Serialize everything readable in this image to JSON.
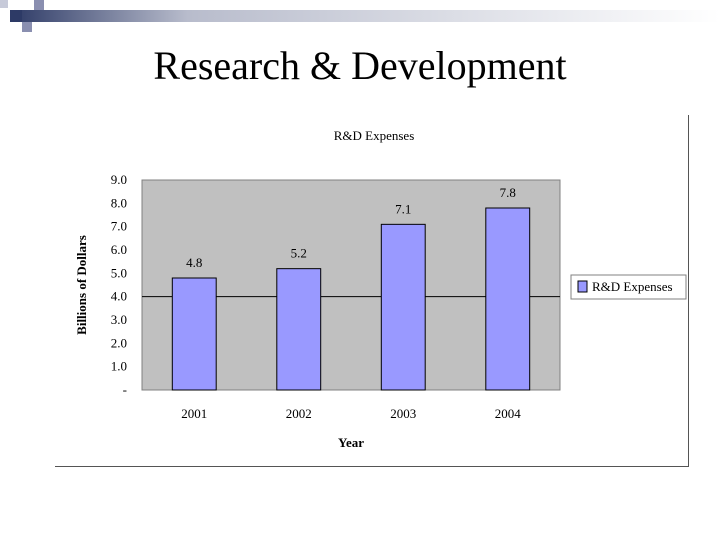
{
  "slide": {
    "title": "Research & Development"
  },
  "chart_data": {
    "type": "bar",
    "title": "R&D Expenses",
    "xlabel": "Year",
    "ylabel": "Billions of Dollars",
    "categories": [
      "2001",
      "2002",
      "2003",
      "2004"
    ],
    "series": [
      {
        "name": "R&D Expenses",
        "values": [
          4.8,
          5.2,
          7.1,
          7.8
        ],
        "labels": [
          "4.8",
          "5.2",
          "7.1",
          "7.8"
        ]
      }
    ],
    "ylim": [
      0,
      9
    ],
    "yticks": [
      {
        "value": 0,
        "label": "-"
      },
      {
        "value": 1,
        "label": "1.0"
      },
      {
        "value": 2,
        "label": "2.0"
      },
      {
        "value": 3,
        "label": "3.0"
      },
      {
        "value": 4,
        "label": "4.0"
      },
      {
        "value": 5,
        "label": "5.0"
      },
      {
        "value": 6,
        "label": "6.0"
      },
      {
        "value": 7,
        "label": "7.0"
      },
      {
        "value": 8,
        "label": "8.0"
      },
      {
        "value": 9,
        "label": "9.0"
      }
    ],
    "reference_line": 4.0,
    "legend_position": "right",
    "colors": {
      "bar": "#9999ff",
      "plot_bg": "#c0c0c0",
      "bar_stroke": "#000000"
    }
  }
}
